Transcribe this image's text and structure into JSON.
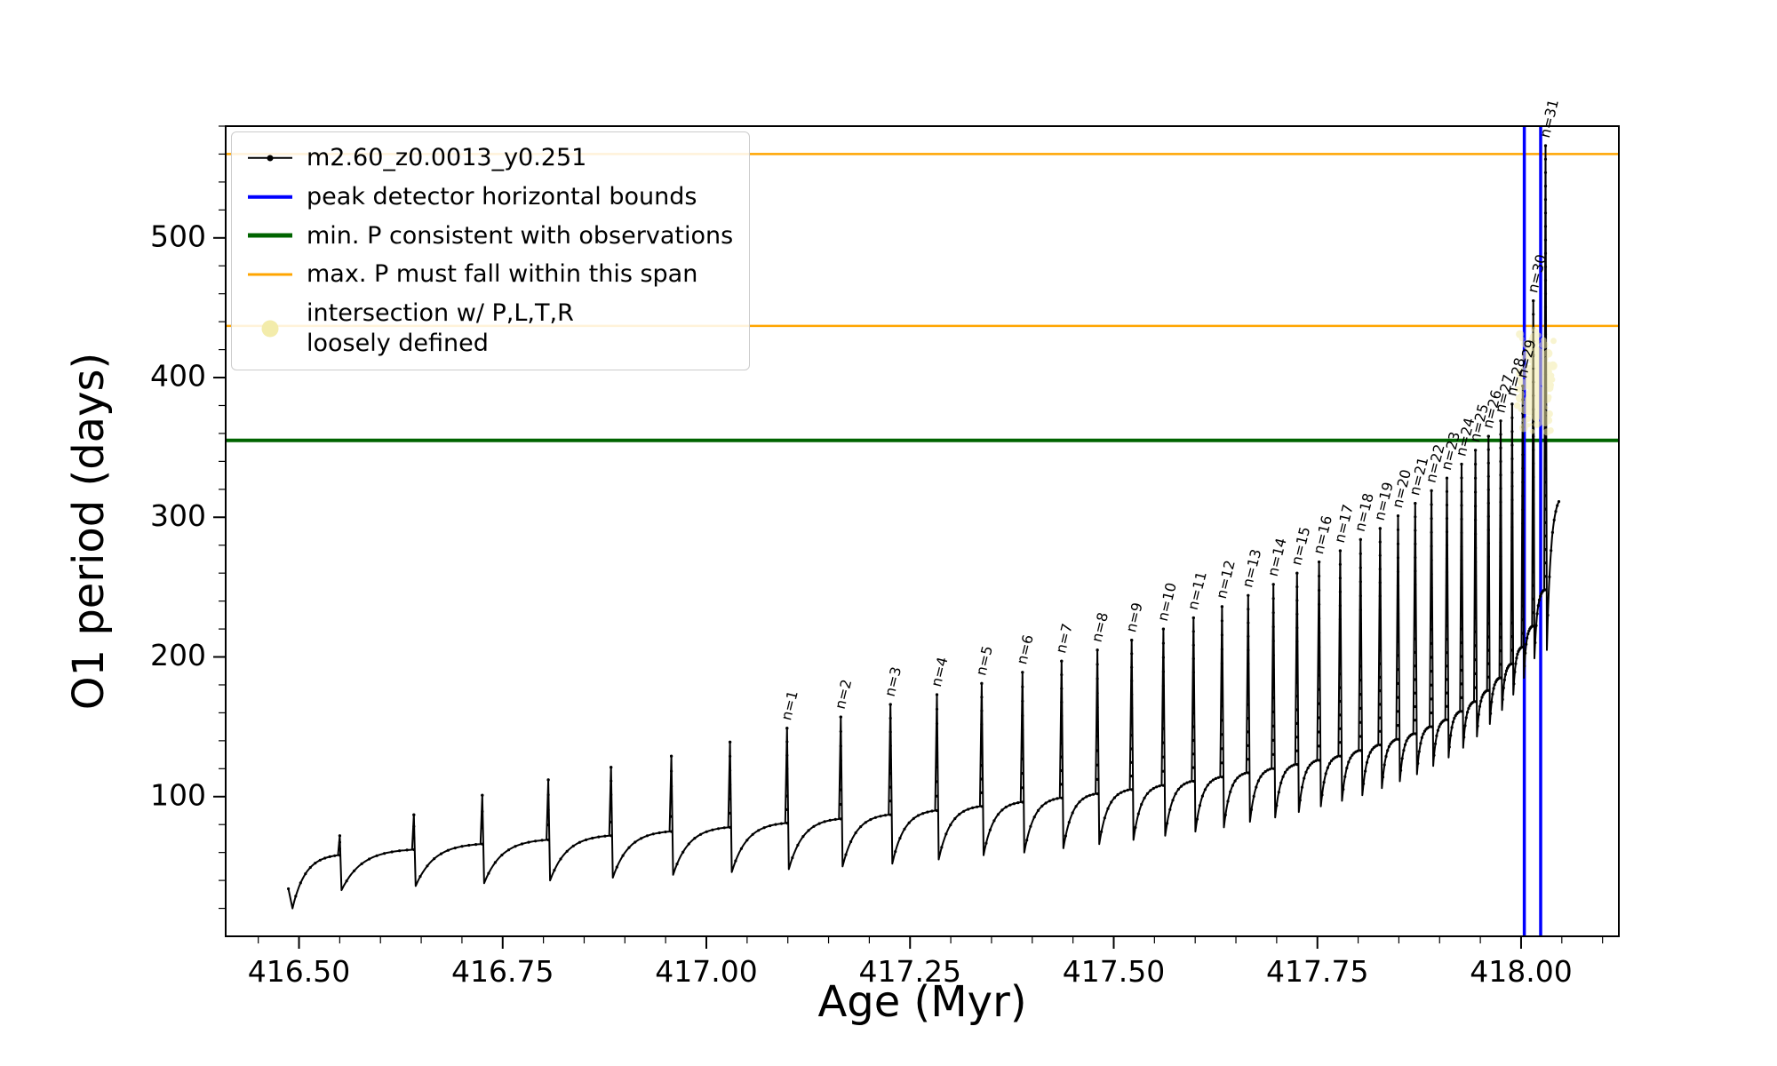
{
  "legend": {
    "items": [
      {
        "label": "m2.60_z0.0013_y0.251",
        "color": "#000000",
        "type": "line-dot",
        "thick": 2.5
      },
      {
        "label": "peak detector horizontal bounds",
        "color": "#0000ff",
        "type": "line",
        "thick": 4.5
      },
      {
        "label": "min. P consistent with observations",
        "color": "#006400",
        "type": "line",
        "thick": 5
      },
      {
        "label": "max. P must fall within this span",
        "color": "#ffa500",
        "type": "line",
        "thick": 3
      },
      {
        "label": "intersection w/ P,L,T,R\nloosely defined",
        "color": "#f3ecab",
        "type": "dot",
        "thick": 0
      }
    ]
  },
  "chart_data": {
    "type": "line",
    "title": "",
    "xlabel": "Age (Myr)",
    "ylabel": "O1 period (days)",
    "xlim": [
      416.41,
      418.12
    ],
    "ylim": [
      0,
      580
    ],
    "xticks": [
      {
        "v": 416.5,
        "label": "416.50"
      },
      {
        "v": 416.75,
        "label": "416.75"
      },
      {
        "v": 417.0,
        "label": "417.00"
      },
      {
        "v": 417.25,
        "label": "417.25"
      },
      {
        "v": 417.5,
        "label": "417.50"
      },
      {
        "v": 417.75,
        "label": "417.75"
      },
      {
        "v": 418.0,
        "label": "418.00"
      }
    ],
    "yticks": [
      {
        "v": 100,
        "label": "100"
      },
      {
        "v": 200,
        "label": "200"
      },
      {
        "v": 300,
        "label": "300"
      },
      {
        "v": 400,
        "label": "400"
      },
      {
        "v": 500,
        "label": "500"
      }
    ],
    "x_minor_step": 0.05,
    "y_minor_step": 20,
    "series_name": "m2.60_z0.0013_y0.251",
    "series_color": "#000000",
    "lead_in": [
      [
        416.487,
        34
      ],
      [
        416.492,
        20
      ]
    ],
    "pulses": [
      {
        "x": 416.55,
        "peak": 72,
        "base": 58,
        "dip": 33
      },
      {
        "x": 416.641,
        "peak": 87,
        "base": 62,
        "dip": 36
      },
      {
        "x": 416.725,
        "peak": 101,
        "base": 66,
        "dip": 38
      },
      {
        "x": 416.806,
        "peak": 112,
        "base": 69,
        "dip": 40
      },
      {
        "x": 416.883,
        "peak": 121,
        "base": 72,
        "dip": 42
      },
      {
        "x": 416.957,
        "peak": 129,
        "base": 75,
        "dip": 44
      },
      {
        "x": 417.029,
        "peak": 139,
        "base": 78,
        "dip": 46
      },
      {
        "x": 417.099,
        "peak": 149,
        "base": 81,
        "dip": 48,
        "label": "n=1"
      },
      {
        "x": 417.165,
        "peak": 157,
        "base": 84,
        "dip": 50,
        "label": "n=2"
      },
      {
        "x": 417.226,
        "peak": 166,
        "base": 87,
        "dip": 52,
        "label": "n=3"
      },
      {
        "x": 417.283,
        "peak": 173,
        "base": 90,
        "dip": 55,
        "label": "n=4"
      },
      {
        "x": 417.338,
        "peak": 181,
        "base": 93,
        "dip": 58,
        "label": "n=5"
      },
      {
        "x": 417.388,
        "peak": 189,
        "base": 96,
        "dip": 60,
        "label": "n=6"
      },
      {
        "x": 417.436,
        "peak": 197,
        "base": 99,
        "dip": 63,
        "label": "n=7"
      },
      {
        "x": 417.48,
        "peak": 205,
        "base": 102,
        "dip": 66,
        "label": "n=8"
      },
      {
        "x": 417.522,
        "peak": 212,
        "base": 105,
        "dip": 69,
        "label": "n=9"
      },
      {
        "x": 417.561,
        "peak": 220,
        "base": 108,
        "dip": 72,
        "label": "n=10"
      },
      {
        "x": 417.598,
        "peak": 228,
        "base": 111,
        "dip": 75,
        "label": "n=11"
      },
      {
        "x": 417.633,
        "peak": 236,
        "base": 114,
        "dip": 78,
        "label": "n=12"
      },
      {
        "x": 417.665,
        "peak": 244,
        "base": 117,
        "dip": 82,
        "label": "n=13"
      },
      {
        "x": 417.696,
        "peak": 252,
        "base": 120,
        "dip": 85,
        "label": "n=14"
      },
      {
        "x": 417.725,
        "peak": 260,
        "base": 123,
        "dip": 89,
        "label": "n=15"
      },
      {
        "x": 417.752,
        "peak": 268,
        "base": 126,
        "dip": 93,
        "label": "n=16"
      },
      {
        "x": 417.778,
        "peak": 276,
        "base": 129,
        "dip": 97,
        "label": "n=17"
      },
      {
        "x": 417.803,
        "peak": 284,
        "base": 133,
        "dip": 101,
        "label": "n=18"
      },
      {
        "x": 417.827,
        "peak": 292,
        "base": 137,
        "dip": 106,
        "label": "n=19"
      },
      {
        "x": 417.849,
        "peak": 301,
        "base": 141,
        "dip": 111,
        "label": "n=20"
      },
      {
        "x": 417.87,
        "peak": 310,
        "base": 145,
        "dip": 116,
        "label": "n=21"
      },
      {
        "x": 417.89,
        "peak": 319,
        "base": 150,
        "dip": 122,
        "label": "n=22"
      },
      {
        "x": 417.909,
        "peak": 328,
        "base": 155,
        "dip": 128,
        "label": "n=23"
      },
      {
        "x": 417.927,
        "peak": 338,
        "base": 161,
        "dip": 135,
        "label": "n=24"
      },
      {
        "x": 417.944,
        "peak": 348,
        "base": 168,
        "dip": 143,
        "label": "n=25"
      },
      {
        "x": 417.96,
        "peak": 358,
        "base": 176,
        "dip": 152,
        "label": "n=26"
      },
      {
        "x": 417.975,
        "peak": 369,
        "base": 185,
        "dip": 162,
        "label": "n=27"
      },
      {
        "x": 417.989,
        "peak": 381,
        "base": 195,
        "dip": 173,
        "label": "n=28"
      },
      {
        "x": 418.002,
        "peak": 394,
        "base": 207,
        "dip": 185,
        "label": "n=29"
      },
      {
        "x": 418.015,
        "peak": 455,
        "base": 222,
        "dip": 199,
        "label": "n=30"
      },
      {
        "x": 418.03,
        "peak": 566,
        "base": 248,
        "dip": 205,
        "label": "n=31"
      }
    ],
    "tail": {
      "end_x": 418.047,
      "end_y": 312
    },
    "hlines": [
      {
        "y": 355,
        "color": "#006400",
        "width": 4,
        "name": "min-P-line"
      },
      {
        "y": 437,
        "color": "#ffa500",
        "width": 2.5,
        "name": "max-P-span-lower-line"
      },
      {
        "y": 560,
        "color": "#ffa500",
        "width": 2.5,
        "name": "max-P-span-upper-line"
      }
    ],
    "vlines": [
      {
        "x": 418.004,
        "color": "#0000ff",
        "width": 3.5,
        "name": "peak-bound-left-line"
      },
      {
        "x": 418.024,
        "color": "#0000ff",
        "width": 3.5,
        "name": "peak-bound-right-line"
      }
    ],
    "intersection_region": {
      "x0": 417.993,
      "x1": 418.042,
      "y0": 356,
      "y1": 436,
      "color": "#f3ecab"
    }
  }
}
